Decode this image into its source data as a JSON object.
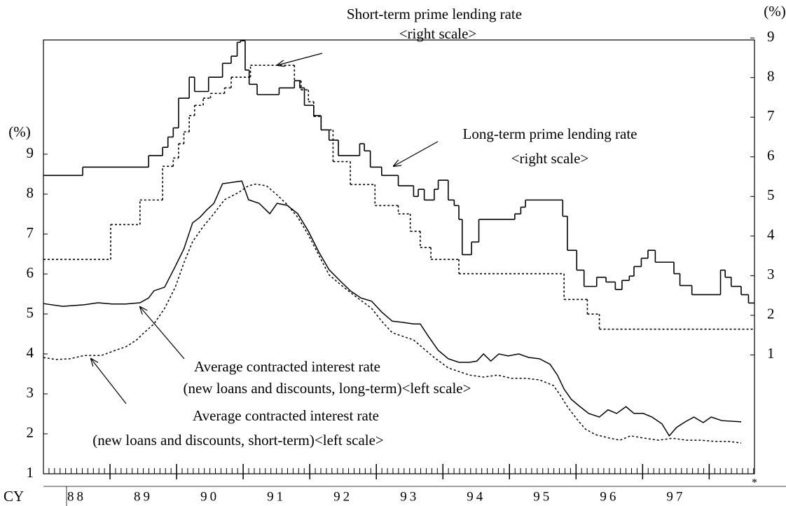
{
  "chart_data": {
    "type": "line",
    "annotations": [
      "Short-term prime lending rate",
      "<right scale>",
      "Long-term prime lending rate",
      "<right scale>",
      "Average contracted interest rate",
      "(new loans and discounts, long-term)<left scale>",
      "Average contracted interest rate",
      "(new loans and discounts, short-term)<left scale>"
    ],
    "y_label": "(%)",
    "y2_label": "(%)",
    "x_label": "CY",
    "note": "*",
    "categories": [
      "88",
      "89",
      "90",
      "91",
      "92",
      "93",
      "94",
      "95",
      "96",
      "97"
    ],
    "xlim": [
      88,
      98.68
    ],
    "xticks": [
      89,
      90,
      91,
      92,
      93,
      94,
      95,
      96,
      97,
      98
    ],
    "ylim": [
      1,
      11.86
    ],
    "yticks": [
      1,
      2,
      3,
      4,
      5,
      6,
      7,
      8,
      9
    ],
    "y2lim": [
      -2,
      8.95
    ],
    "y2ticks": [
      1,
      2,
      3,
      4,
      5,
      6,
      7,
      8,
      9
    ],
    "series": [
      {
        "name": "Short-term prime lending rate",
        "axis": "y2",
        "step": true,
        "dash": true,
        "color": "#000000",
        "x": [
          88,
          89.01,
          89.45,
          89.79,
          89.95,
          90.03,
          90.11,
          90.19,
          90.27,
          90.4,
          90.51,
          90.72,
          90.82,
          91.11,
          91.77,
          91.87,
          91.98,
          92.06,
          92.17,
          92.35,
          92.61,
          92.98,
          93.33,
          93.51,
          93.66,
          93.82,
          94.24,
          95.82,
          96.17,
          96.35
        ],
        "values": [
          3.41,
          4.29,
          4.91,
          5.76,
          5.97,
          6.33,
          6.63,
          7.04,
          7.3,
          7.48,
          7.6,
          7.74,
          8.01,
          8.31,
          7.92,
          7.69,
          7.39,
          7.02,
          6.68,
          5.88,
          5.3,
          4.77,
          4.56,
          4.12,
          3.71,
          3.41,
          3.05,
          2.4,
          2.03,
          1.65
        ]
      },
      {
        "name": "Long-term prime lending rate",
        "axis": "y2",
        "step": true,
        "dash": false,
        "color": "#000000",
        "x": [
          88,
          88.59,
          89.58,
          89.79,
          89.87,
          89.95,
          90.03,
          90.19,
          90.27,
          90.48,
          90.69,
          90.82,
          90.91,
          90.96,
          91.03,
          91.09,
          91.21,
          91.54,
          91.77,
          91.85,
          91.92,
          92.06,
          92.17,
          92.29,
          92.43,
          92.75,
          92.82,
          92.91,
          93.08,
          93.33,
          93.56,
          93.63,
          93.72,
          93.87,
          93.93,
          94.08,
          94.17,
          94.24,
          94.29,
          94.43,
          94.54,
          95.08,
          95.17,
          95.24,
          95.8,
          95.87,
          96.01,
          96.12,
          96.31,
          96.45,
          96.59,
          96.69,
          96.8,
          96.87,
          96.98,
          97.08,
          97.19,
          97.47,
          97.56,
          97.74,
          98.17,
          98.24,
          98.33,
          98.48,
          98.59
        ],
        "values": [
          5.53,
          5.74,
          6.03,
          6.24,
          6.5,
          6.73,
          7.48,
          8.01,
          7.65,
          8.01,
          8.36,
          8.54,
          8.89,
          8.93,
          8.19,
          7.83,
          7.57,
          7.74,
          7.92,
          7.74,
          7.3,
          7.04,
          6.68,
          6.42,
          6.03,
          6.33,
          6.15,
          5.74,
          5.53,
          5.27,
          5.0,
          5.18,
          4.91,
          5.18,
          5.41,
          4.91,
          4.77,
          4.42,
          3.53,
          3.85,
          4.42,
          4.56,
          4.73,
          4.91,
          4.5,
          3.64,
          3.14,
          2.73,
          2.96,
          2.84,
          2.65,
          2.88,
          2.99,
          3.23,
          3.44,
          3.64,
          3.34,
          3.05,
          2.75,
          2.52,
          3.14,
          2.96,
          2.73,
          2.52,
          2.31
        ]
      },
      {
        "name": "Average contracted interest rate (new loans and discounts, long-term)",
        "axis": "y",
        "step": false,
        "dash": false,
        "color": "#000000",
        "x": [
          88,
          88.29,
          88.61,
          88.82,
          89.03,
          89.24,
          89.45,
          89.58,
          89.66,
          89.82,
          89.98,
          90.11,
          90.24,
          90.35,
          90.45,
          90.56,
          90.69,
          90.98,
          91.08,
          91.24,
          91.4,
          91.51,
          91.66,
          91.82,
          91.98,
          92.14,
          92.29,
          92.45,
          92.61,
          92.77,
          92.93,
          93.08,
          93.24,
          93.4,
          93.56,
          93.66,
          93.77,
          93.93,
          94.08,
          94.24,
          94.4,
          94.51,
          94.61,
          94.72,
          94.84,
          94.98,
          95.14,
          95.29,
          95.45,
          95.61,
          95.72,
          95.82,
          95.93,
          96.06,
          96.19,
          96.35,
          96.48,
          96.61,
          96.75,
          96.87,
          97.01,
          97.14,
          97.29,
          97.4,
          97.51,
          97.64,
          97.77,
          97.91,
          98.03,
          98.19,
          98.48
        ],
        "values": [
          5.26,
          5.19,
          5.23,
          5.28,
          5.25,
          5.25,
          5.28,
          5.4,
          5.58,
          5.67,
          6.19,
          6.63,
          7.28,
          7.42,
          7.6,
          7.77,
          8.26,
          8.33,
          7.86,
          7.77,
          7.51,
          7.77,
          7.72,
          7.51,
          7.07,
          6.54,
          6.11,
          5.84,
          5.58,
          5.4,
          5.32,
          5.05,
          4.82,
          4.79,
          4.75,
          4.75,
          4.47,
          4.09,
          3.88,
          3.79,
          3.79,
          3.82,
          4.0,
          3.82,
          4.0,
          3.95,
          4.0,
          3.91,
          3.88,
          3.74,
          3.47,
          3.12,
          2.86,
          2.68,
          2.51,
          2.42,
          2.6,
          2.51,
          2.68,
          2.51,
          2.51,
          2.42,
          2.25,
          1.95,
          2.16,
          2.3,
          2.42,
          2.28,
          2.42,
          2.33,
          2.3
        ]
      },
      {
        "name": "Average contracted interest rate (new loans and discounts, short-term)",
        "axis": "y",
        "step": false,
        "dash": true,
        "color": "#000000",
        "x": [
          88,
          88.19,
          88.4,
          88.61,
          88.87,
          89.08,
          89.24,
          89.4,
          89.51,
          89.66,
          89.82,
          89.98,
          90.11,
          90.24,
          90.4,
          90.56,
          90.72,
          90.93,
          91.08,
          91.19,
          91.35,
          91.51,
          91.66,
          91.82,
          91.98,
          92.14,
          92.29,
          92.51,
          92.72,
          92.93,
          93.08,
          93.24,
          93.4,
          93.56,
          93.72,
          93.87,
          94.08,
          94.24,
          94.4,
          94.61,
          94.82,
          95.03,
          95.24,
          95.45,
          95.66,
          95.77,
          95.87,
          96.03,
          96.14,
          96.29,
          96.51,
          96.66,
          96.82,
          97.03,
          97.24,
          97.45,
          97.66,
          97.87,
          98.08,
          98.29,
          98.48
        ],
        "values": [
          3.91,
          3.86,
          3.88,
          3.96,
          3.96,
          4.09,
          4.18,
          4.35,
          4.53,
          4.75,
          5.14,
          5.67,
          6.28,
          6.81,
          7.19,
          7.51,
          7.86,
          8.04,
          8.21,
          8.25,
          8.21,
          7.98,
          7.74,
          7.42,
          6.98,
          6.46,
          5.98,
          5.67,
          5.4,
          5.14,
          4.82,
          4.53,
          4.44,
          4.35,
          4.12,
          3.91,
          3.65,
          3.56,
          3.47,
          3.42,
          3.47,
          3.39,
          3.39,
          3.35,
          3.21,
          2.95,
          2.68,
          2.33,
          2.12,
          1.98,
          1.89,
          1.84,
          1.95,
          1.89,
          1.84,
          1.89,
          1.84,
          1.84,
          1.81,
          1.81,
          1.77
        ]
      }
    ]
  }
}
